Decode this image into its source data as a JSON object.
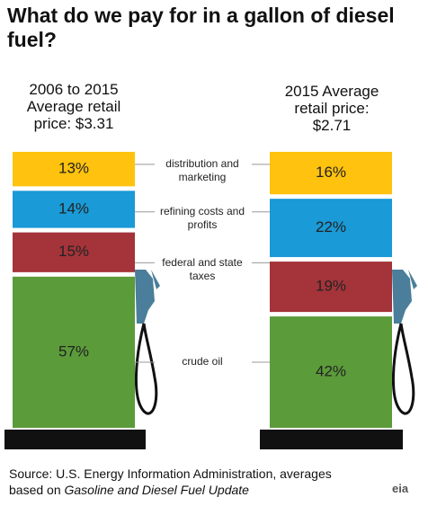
{
  "title": "What do we pay for in a gallon of diesel fuel?",
  "chart_data": {
    "type": "stacked_bar",
    "categories": [
      "2006 to 2015 Average retail price: $3.31",
      "2015 Average retail price: $2.71"
    ],
    "series": [
      {
        "name": "distribution and marketing",
        "color": "#ffc20e",
        "values": [
          13,
          16
        ],
        "value_labels": [
          "13%",
          "16%"
        ]
      },
      {
        "name": "refining costs and profits",
        "color": "#1a9ad6",
        "values": [
          14,
          22
        ],
        "value_labels": [
          "14%",
          "22%"
        ]
      },
      {
        "name": "federal and state taxes",
        "color": "#a4343a",
        "values": [
          15,
          19
        ],
        "value_labels": [
          "15%",
          "19%"
        ]
      },
      {
        "name": "crude oil",
        "color": "#5b9b3a",
        "values": [
          57,
          42
        ],
        "value_labels": [
          "57%",
          "42%"
        ]
      }
    ]
  },
  "source": "Source: U.S. Energy Information Administration, averages based on",
  "source_italic": "Gasoline and Diesel Fuel Update",
  "logo": "eia"
}
